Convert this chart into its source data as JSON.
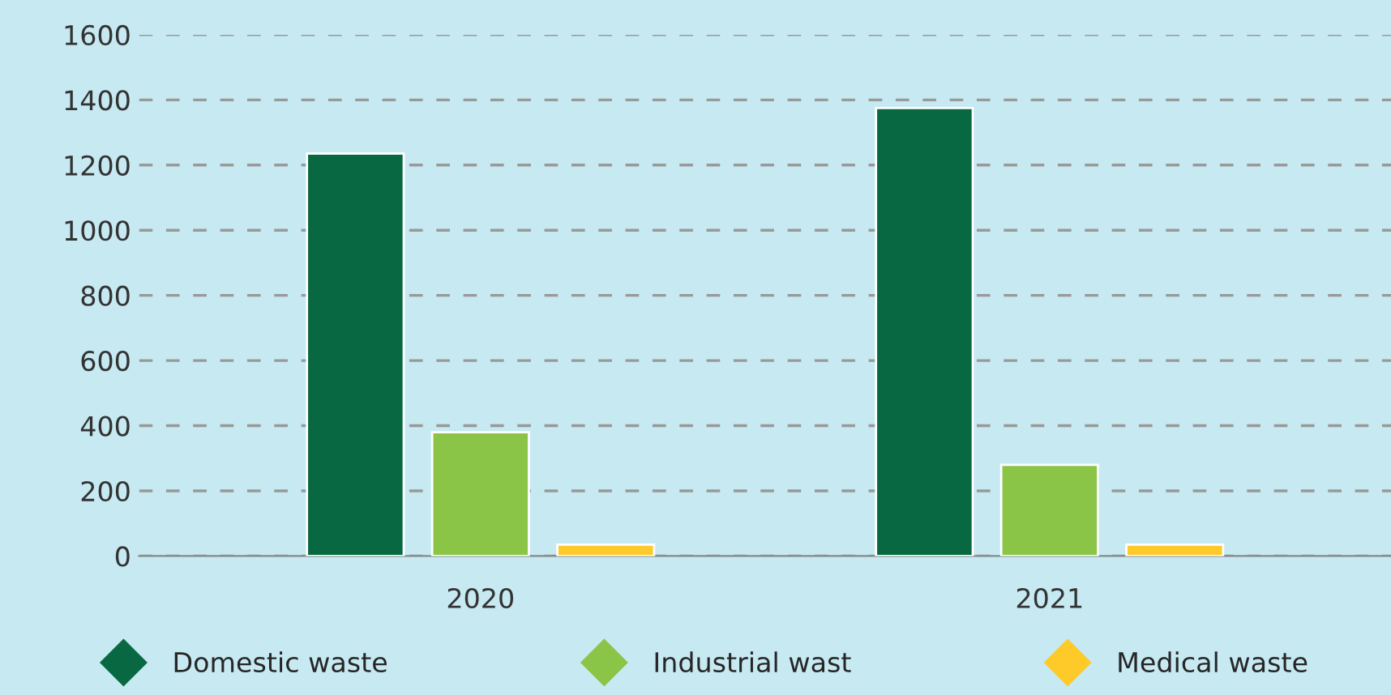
{
  "chart_data": {
    "type": "bar",
    "categories": [
      "2020",
      "2021"
    ],
    "series": [
      {
        "name": "Domestic waste",
        "color": "#086841",
        "values": [
          1235,
          1375
        ]
      },
      {
        "name": "Industrial wast",
        "color": "#8bc548",
        "values": [
          380,
          280
        ]
      },
      {
        "name": "Medical waste",
        "color": "#fdca2a",
        "values": [
          35,
          35
        ]
      }
    ],
    "ylim": [
      0,
      1600
    ],
    "yticks": [
      0,
      200,
      400,
      600,
      800,
      1000,
      1200,
      1400,
      1600
    ],
    "grid": "y",
    "legend": "bottom"
  }
}
